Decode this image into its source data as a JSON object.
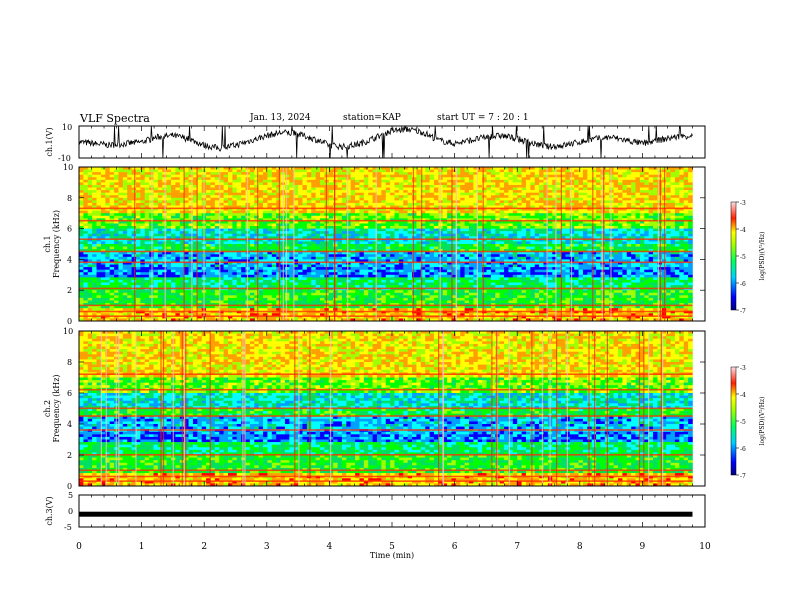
{
  "header": {
    "title": "VLF Spectra",
    "date": "Jan. 13, 2024",
    "station": "station=KAP",
    "start_ut": "start UT =  7 : 20 : 1"
  },
  "colors": {
    "spectrum": [
      "#000080",
      "#0000ff",
      "#00a0ff",
      "#00ffff",
      "#00e060",
      "#00ff00",
      "#a0ff00",
      "#ffff00",
      "#ffa000",
      "#ff0000",
      "#ff90a0",
      "#ffe0e0"
    ]
  },
  "chart_data": [
    {
      "type": "line",
      "name": "ch1-waveform",
      "ylabel": "ch.1(V)",
      "ylim": [
        -10,
        10
      ],
      "yticks": [
        "10",
        "-10"
      ],
      "xlim": [
        0,
        10
      ],
      "x": [
        0,
        0.25,
        0.5,
        0.75,
        1,
        1.25,
        1.5,
        1.75,
        2,
        2.25,
        2.5,
        2.75,
        3,
        3.25,
        3.5,
        3.75,
        4,
        4.25,
        4.5,
        4.75,
        5,
        5.25,
        5.5,
        5.75,
        6,
        6.25,
        6.5,
        6.75,
        7,
        7.25,
        7.5,
        7.75,
        8,
        8.25,
        8.5,
        8.75,
        9,
        9.25,
        9.5,
        9.75
      ],
      "values": [
        0,
        -1,
        -2,
        -1,
        0,
        3,
        4,
        2,
        -2,
        -4,
        -2,
        1,
        4,
        6,
        5,
        2,
        -2,
        -3,
        -1,
        3,
        7,
        8,
        6,
        1,
        -1,
        1,
        3,
        4,
        2,
        -1,
        -3,
        -2,
        0,
        2,
        3,
        1,
        -1,
        1,
        3,
        4
      ]
    },
    {
      "type": "heatmap",
      "name": "ch1-spectrogram",
      "ylabel": "ch.1\nFrequency (kHz)",
      "ylim": [
        0,
        10
      ],
      "yticks": [
        "0",
        "2",
        "4",
        "6",
        "8",
        "10"
      ],
      "xlim": [
        0,
        10
      ],
      "colorbar": {
        "label": "log(PSD)(V²/Hz)",
        "range": [
          -7,
          -3
        ],
        "ticks": [
          "-3",
          "-4",
          "-5",
          "-6",
          "-7"
        ]
      }
    },
    {
      "type": "heatmap",
      "name": "ch2-spectrogram",
      "ylabel": "ch.2\nFrequency (kHz)",
      "ylim": [
        0,
        10
      ],
      "yticks": [
        "0",
        "2",
        "4",
        "6",
        "8",
        "10"
      ],
      "xlim": [
        0,
        10
      ],
      "colorbar": {
        "label": "log(PSD)(V²/Hz)",
        "range": [
          -7,
          -3
        ],
        "ticks": [
          "-3",
          "-4",
          "-5",
          "-6",
          "-7"
        ]
      }
    },
    {
      "type": "line",
      "name": "ch3-waveform",
      "ylabel": "ch.3(V)",
      "ylim": [
        -5,
        5
      ],
      "yticks": [
        "5",
        "0",
        "-5"
      ],
      "xlim": [
        0,
        10
      ],
      "x": [
        0,
        9.8
      ],
      "values": [
        -1,
        -1
      ],
      "xlabel": "Time (min)",
      "xticks": [
        "0",
        "1",
        "2",
        "3",
        "4",
        "5",
        "6",
        "7",
        "8",
        "9",
        "10"
      ]
    }
  ]
}
